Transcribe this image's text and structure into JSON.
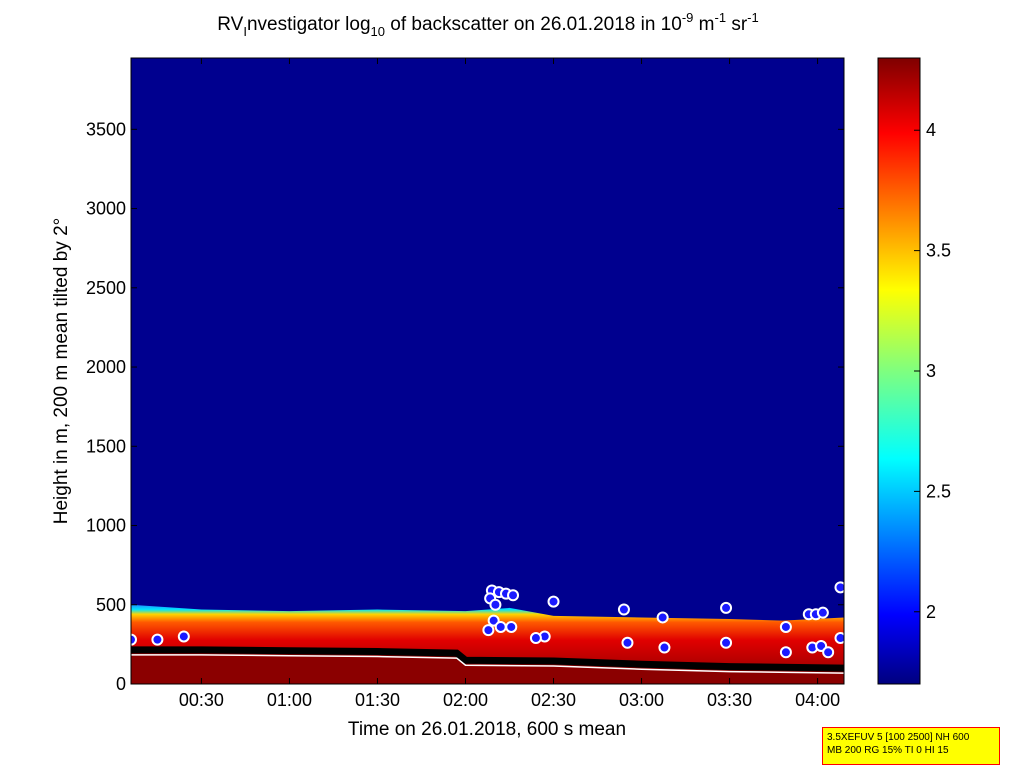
{
  "chart_data": {
    "type": "heatmap",
    "title": {
      "prefix": "RV",
      "sub1": "I",
      "part2": "nvestigator log",
      "sub2": "10",
      "part3": " of backscatter on 26.01.2018 in 10",
      "sup1": "-9",
      "part4": " m",
      "sup2": "-1",
      "part5": " sr",
      "sup3": "-1"
    },
    "xlabel": "Time on 26.01.2018, 600 s mean",
    "ylabel": "Height in m, 200 m mean tilted by 2°",
    "x_range_hours": [
      0.1,
      4.15
    ],
    "x_ticks": [
      {
        "value": 0.5,
        "label": "00:30"
      },
      {
        "value": 1.0,
        "label": "01:00"
      },
      {
        "value": 1.5,
        "label": "01:30"
      },
      {
        "value": 2.0,
        "label": "02:00"
      },
      {
        "value": 2.5,
        "label": "02:30"
      },
      {
        "value": 3.0,
        "label": "03:00"
      },
      {
        "value": 3.5,
        "label": "03:30"
      },
      {
        "value": 4.0,
        "label": "04:00"
      }
    ],
    "y_range": [
      0,
      3950
    ],
    "y_ticks": [
      0,
      500,
      1000,
      1500,
      2000,
      2500,
      3000,
      3500
    ],
    "colorbar": {
      "range": [
        1.7,
        4.3
      ],
      "ticks": [
        2,
        2.5,
        3,
        3.5,
        4
      ],
      "tick_labels": [
        "2",
        "2.5",
        "3",
        "3.5",
        "4"
      ],
      "colormap": "jet"
    },
    "background_color": "#00008f",
    "layers": {
      "aerosol_top": [
        {
          "t": 0.1,
          "h": 500
        },
        {
          "t": 0.5,
          "h": 470
        },
        {
          "t": 1.0,
          "h": 460
        },
        {
          "t": 1.5,
          "h": 470
        },
        {
          "t": 2.0,
          "h": 460
        },
        {
          "t": 2.25,
          "h": 480
        },
        {
          "t": 2.5,
          "h": 430
        },
        {
          "t": 3.0,
          "h": 420
        },
        {
          "t": 3.5,
          "h": 410
        },
        {
          "t": 3.8,
          "h": 400
        },
        {
          "t": 4.15,
          "h": 420
        }
      ],
      "mixed_layer_line": [
        {
          "t": 0.1,
          "h": 215
        },
        {
          "t": 0.5,
          "h": 215
        },
        {
          "t": 1.0,
          "h": 210
        },
        {
          "t": 1.5,
          "h": 205
        },
        {
          "t": 1.95,
          "h": 195
        },
        {
          "t": 2.0,
          "h": 150
        },
        {
          "t": 2.5,
          "h": 145
        },
        {
          "t": 3.0,
          "h": 125
        },
        {
          "t": 3.5,
          "h": 110
        },
        {
          "t": 4.15,
          "h": 100
        }
      ]
    },
    "markers": [
      {
        "t": 2.15,
        "h": 590
      },
      {
        "t": 2.19,
        "h": 580
      },
      {
        "t": 2.23,
        "h": 570
      },
      {
        "t": 2.27,
        "h": 560
      },
      {
        "t": 2.14,
        "h": 540
      },
      {
        "t": 2.17,
        "h": 500
      },
      {
        "t": 2.16,
        "h": 400
      },
      {
        "t": 2.2,
        "h": 360
      },
      {
        "t": 2.26,
        "h": 360
      },
      {
        "t": 2.13,
        "h": 340
      },
      {
        "t": 2.5,
        "h": 520
      },
      {
        "t": 2.45,
        "h": 300
      },
      {
        "t": 2.4,
        "h": 290
      },
      {
        "t": 2.9,
        "h": 470
      },
      {
        "t": 3.12,
        "h": 420
      },
      {
        "t": 2.92,
        "h": 260
      },
      {
        "t": 3.13,
        "h": 230
      },
      {
        "t": 3.48,
        "h": 480
      },
      {
        "t": 3.48,
        "h": 260
      },
      {
        "t": 3.82,
        "h": 360
      },
      {
        "t": 3.82,
        "h": 200
      },
      {
        "t": 3.95,
        "h": 440
      },
      {
        "t": 3.99,
        "h": 440
      },
      {
        "t": 4.03,
        "h": 450
      },
      {
        "t": 3.97,
        "h": 230
      },
      {
        "t": 4.02,
        "h": 240
      },
      {
        "t": 4.06,
        "h": 200
      },
      {
        "t": 4.13,
        "h": 610
      },
      {
        "t": 4.13,
        "h": 290
      },
      {
        "t": 0.1,
        "h": 280
      },
      {
        "t": 0.25,
        "h": 280
      },
      {
        "t": 0.4,
        "h": 300
      }
    ]
  },
  "info_box": {
    "line1": "3.5XEFUV 5 [100 2500] NH 600",
    "line2": "MB 200 RG 15% TI 0 HI 15"
  }
}
